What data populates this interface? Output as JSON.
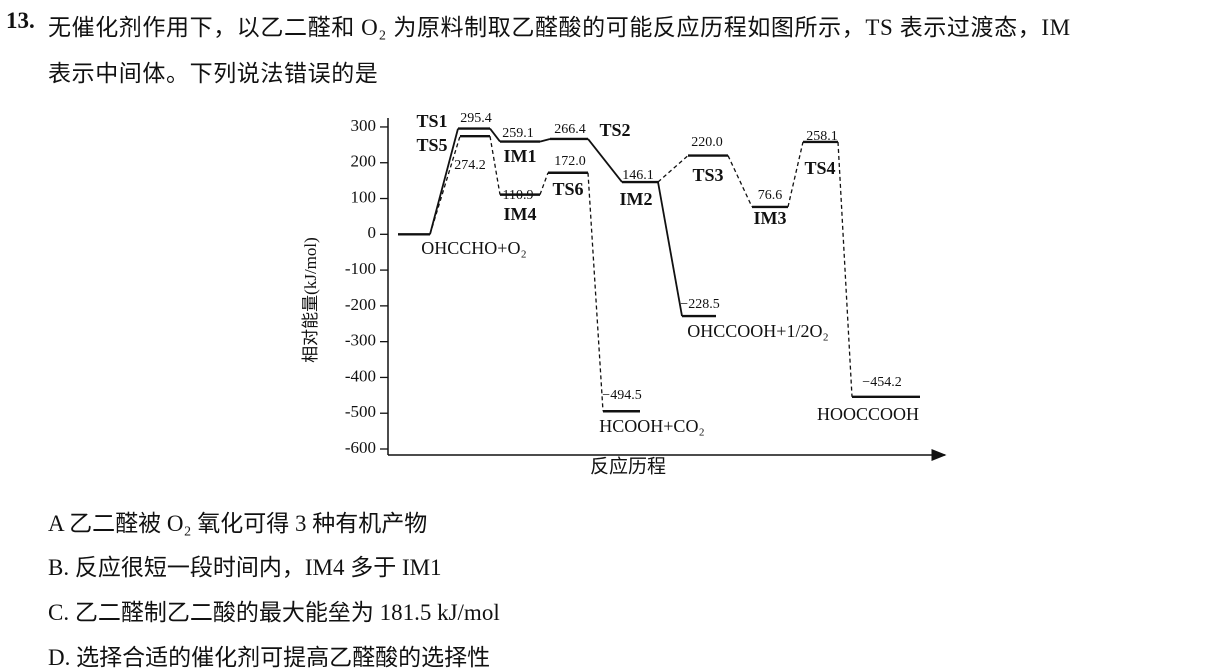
{
  "question": {
    "number": "13.",
    "text_line1": "无催化剂作用下，以乙二醛和 O₂ 为原料制取乙醛酸的可能反应历程如图所示，TS 表示过渡态，IM",
    "text_line2": "表示中间体。下列说法错误的是"
  },
  "chart_data": {
    "type": "energy-diagram",
    "ylabel": "相对能量(kJ/mol)",
    "xlabel": "反应历程",
    "ylim": [
      -600,
      320
    ],
    "yticks": [
      300,
      200,
      100,
      0,
      -100,
      -200,
      -300,
      -400,
      -500,
      -600
    ],
    "levels": [
      {
        "name": "OHCCHO+O₂",
        "value": 0
      },
      {
        "name": "TS1",
        "value": 295.4,
        "value_label": "295.4"
      },
      {
        "name": "TS5",
        "value": 274.2,
        "value_label": "274.2"
      },
      {
        "name": "IM1",
        "value": 259.1,
        "value_label": "259.1"
      },
      {
        "name": "IM4",
        "value": 110.9,
        "value_label": "110.9"
      },
      {
        "name": "TS2",
        "value": 266.4,
        "value_label": "266.4"
      },
      {
        "name": "TS6",
        "value": 172.0,
        "value_label": "172.0"
      },
      {
        "name": "IM2",
        "value": 146.1,
        "value_label": "146.1"
      },
      {
        "name": "TS3",
        "value": 220.0,
        "value_label": "220.0"
      },
      {
        "name": "IM3",
        "value": 76.6,
        "value_label": "76.6"
      },
      {
        "name": "TS4",
        "value": 258.1,
        "value_label": "258.1"
      },
      {
        "name": "HCOOH+CO₂",
        "value": -494.5,
        "value_label": "−494.5"
      },
      {
        "name": "OHCCOOH+1/2O₂",
        "value": -228.5,
        "value_label": "−228.5"
      },
      {
        "name": "HOOCCOOH",
        "value": -454.2,
        "value_label": "−454.2"
      }
    ]
  },
  "options": [
    "A  乙二醛被 O₂ 氧化可得 3 种有机产物",
    "B. 反应很短一段时间内，IM4 多于 IM1",
    "C. 乙二醛制乙二酸的最大能垒为 181.5 kJ/mol",
    "D. 选择合适的催化剂可提高乙醛酸的选择性"
  ]
}
